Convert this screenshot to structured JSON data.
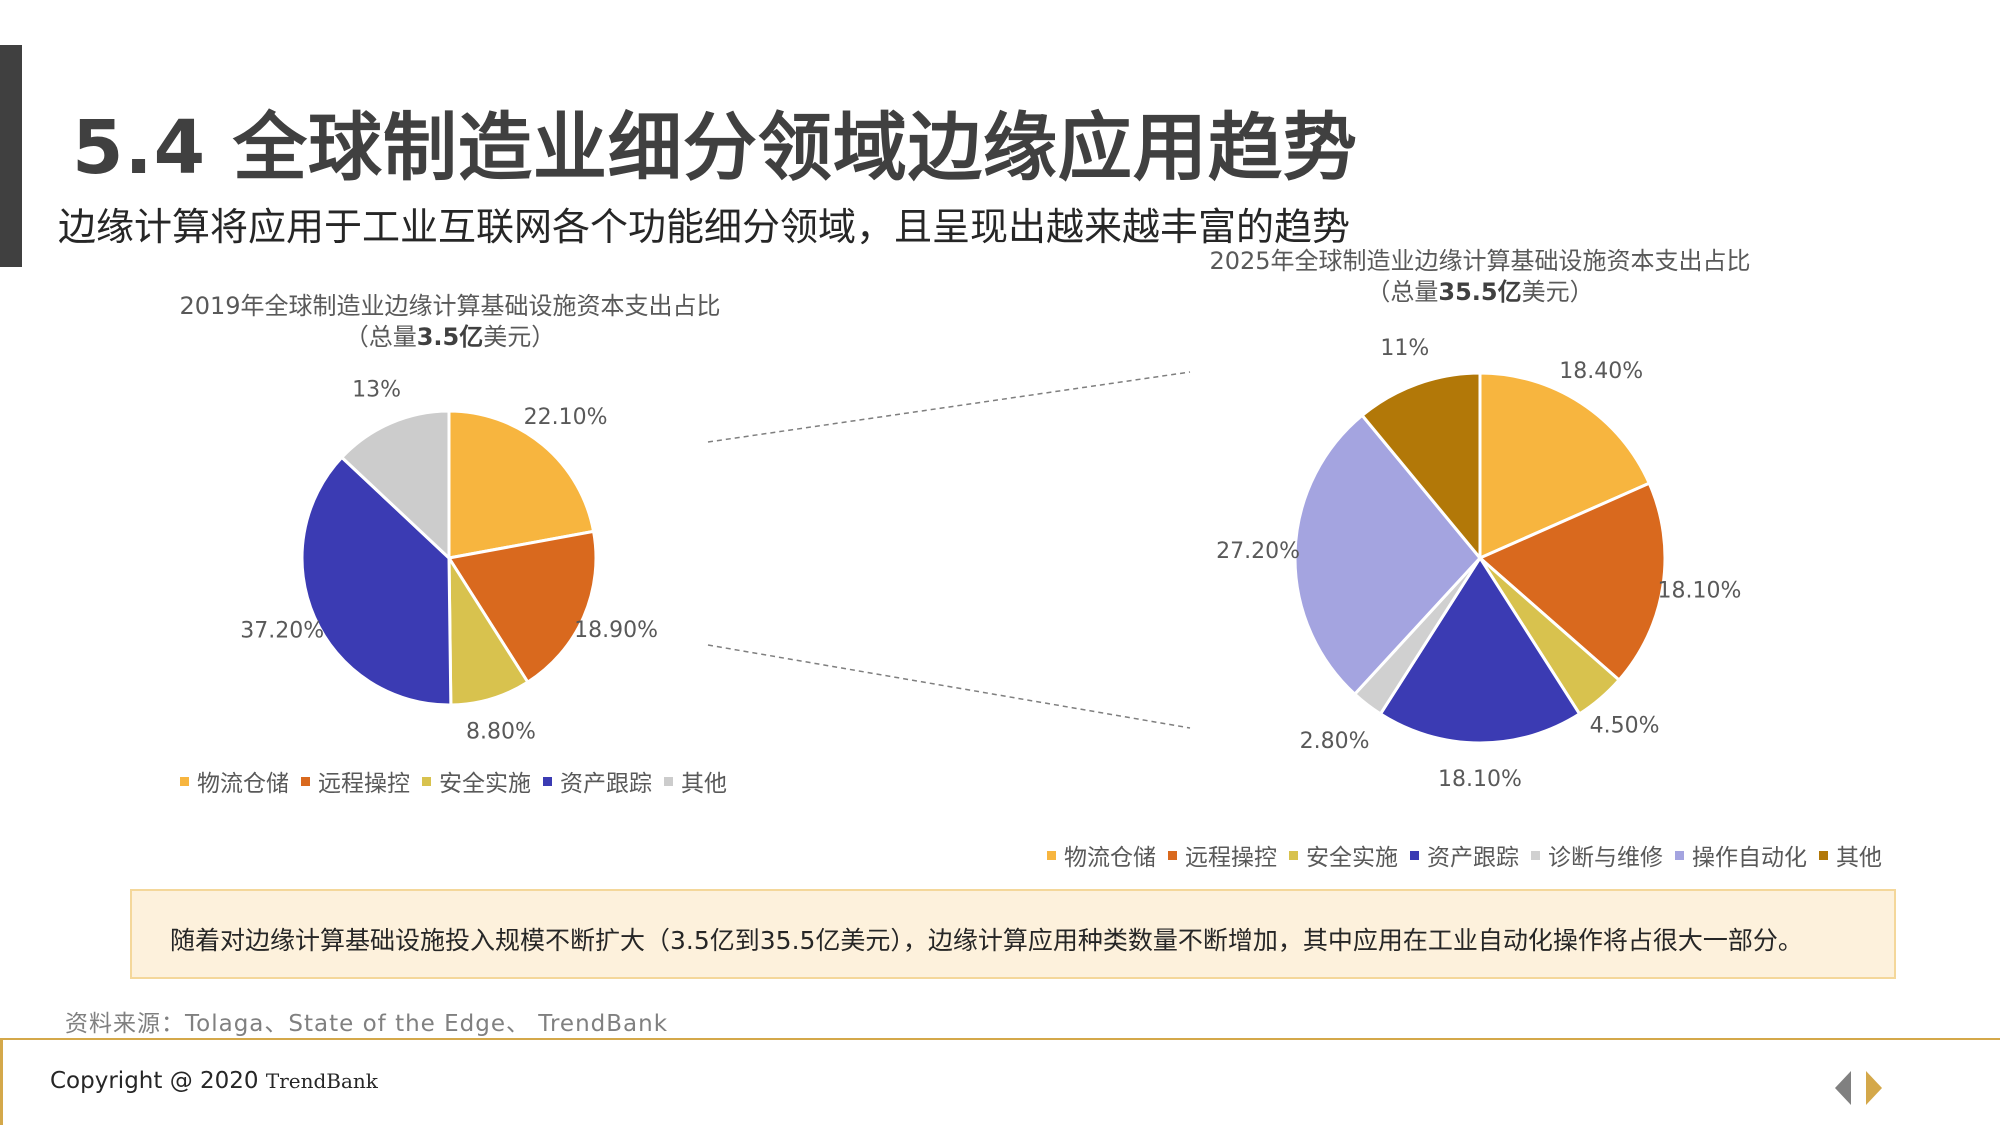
{
  "header": {
    "title": "5.4 全球制造业细分领域边缘应用趋势",
    "subtitle": "边缘计算将应用于工业互联网各个功能细分领域，且呈现出越来越丰富的趋势"
  },
  "colors": {
    "accent_bar": "#404040",
    "note_bg": "#fdf1dc",
    "note_border": "#f4d79a",
    "footer_line": "#d4a84a"
  },
  "chart_data": [
    {
      "type": "pie",
      "title": "2019年全球制造业边缘计算基础设施资本支出占比",
      "subtitle_prefix": "（总量",
      "subtitle_bold": "3.5亿",
      "subtitle_suffix": "美元）",
      "slices": [
        {
          "name": "物流仓储",
          "value": 22.1,
          "label": "22.10%",
          "color": "#f7b53f"
        },
        {
          "name": "远程操控",
          "value": 18.9,
          "label": "18.90%",
          "color": "#d9691e"
        },
        {
          "name": "安全实施",
          "value": 8.8,
          "label": "8.80%",
          "color": "#d8c24e"
        },
        {
          "name": "资产跟踪",
          "value": 37.2,
          "label": "37.20%",
          "color": "#3b3bb3"
        },
        {
          "name": "其他",
          "value": 13,
          "label": "13%",
          "color": "#cccccc"
        }
      ]
    },
    {
      "type": "pie",
      "title": "2025年全球制造业边缘计算基础设施资本支出占比",
      "subtitle_prefix": "（总量",
      "subtitle_bold": "35.5亿",
      "subtitle_suffix": "美元）",
      "slices": [
        {
          "name": "物流仓储",
          "value": 18.4,
          "label": "18.40%",
          "color": "#f7b53f"
        },
        {
          "name": "远程操控",
          "value": 18.1,
          "label": "18.10%",
          "color": "#d9691e"
        },
        {
          "name": "安全实施",
          "value": 4.5,
          "label": "4.50%",
          "color": "#d8c24e"
        },
        {
          "name": "资产跟踪",
          "value": 18.1,
          "label": "18.10%",
          "color": "#3b3bb3"
        },
        {
          "name": "诊断与维修",
          "value": 2.8,
          "label": "2.80%",
          "color": "#d0d0d0"
        },
        {
          "name": "操作自动化",
          "value": 27.2,
          "label": "27.20%",
          "color": "#a4a4e0"
        },
        {
          "name": "其他",
          "value": 11,
          "label": "11%",
          "color": "#b27808"
        }
      ]
    }
  ],
  "note": "随着对边缘计算基础设施投入规模不断扩大（3.5亿到35.5亿美元），边缘计算应用种类数量不断增加，其中应用在工业自动化操作将占很大一部分。",
  "source": "资料来源：Tolaga、State of the Edge、 TrendBank",
  "footer": {
    "copyright": "Copyright @ 2020 ",
    "brand": "TrendBank"
  }
}
